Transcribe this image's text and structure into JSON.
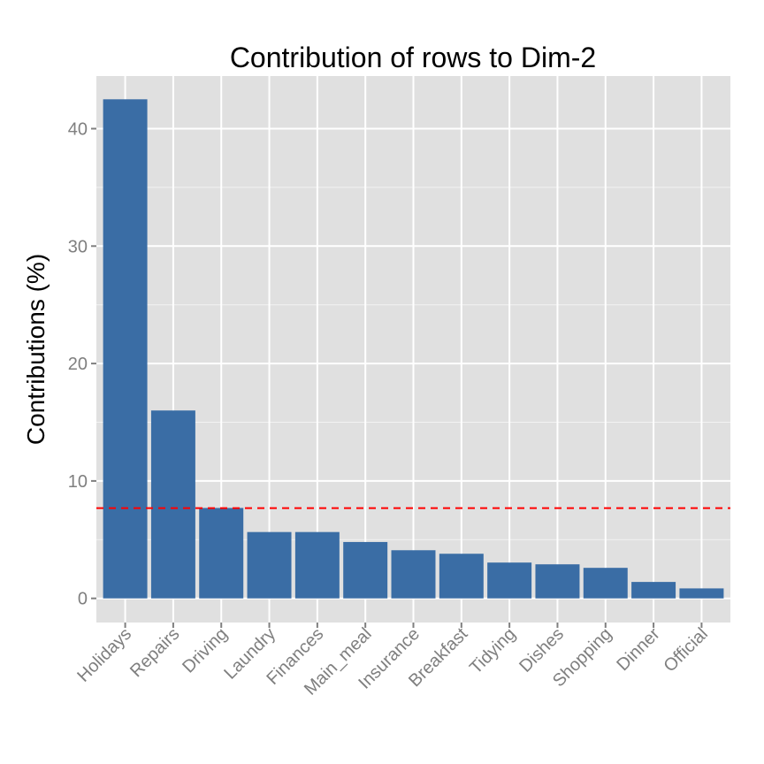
{
  "chart_data": {
    "type": "bar",
    "title": "Contribution of rows to Dim-2",
    "xlabel": "",
    "ylabel": "Contributions (%)",
    "categories": [
      "Holidays",
      "Repairs",
      "Driving",
      "Laundry",
      "Finances",
      "Main_meal",
      "Insurance",
      "Breakfast",
      "Tidying",
      "Dishes",
      "Shopping",
      "Dinner",
      "Official"
    ],
    "values": [
      42.5,
      16.0,
      7.7,
      5.65,
      5.65,
      4.8,
      4.1,
      3.8,
      3.05,
      2.9,
      2.6,
      1.4,
      0.85
    ],
    "ylim": [
      -2.0,
      44.5
    ],
    "yticks": [
      0,
      10,
      20,
      30,
      40
    ],
    "reference_line": 7.69,
    "grid": true,
    "colors": {
      "bar": "#3A6DA5",
      "panel": "#E0E0E0",
      "grid": "#FFFFFF",
      "reference_line": "#FF0000"
    }
  }
}
